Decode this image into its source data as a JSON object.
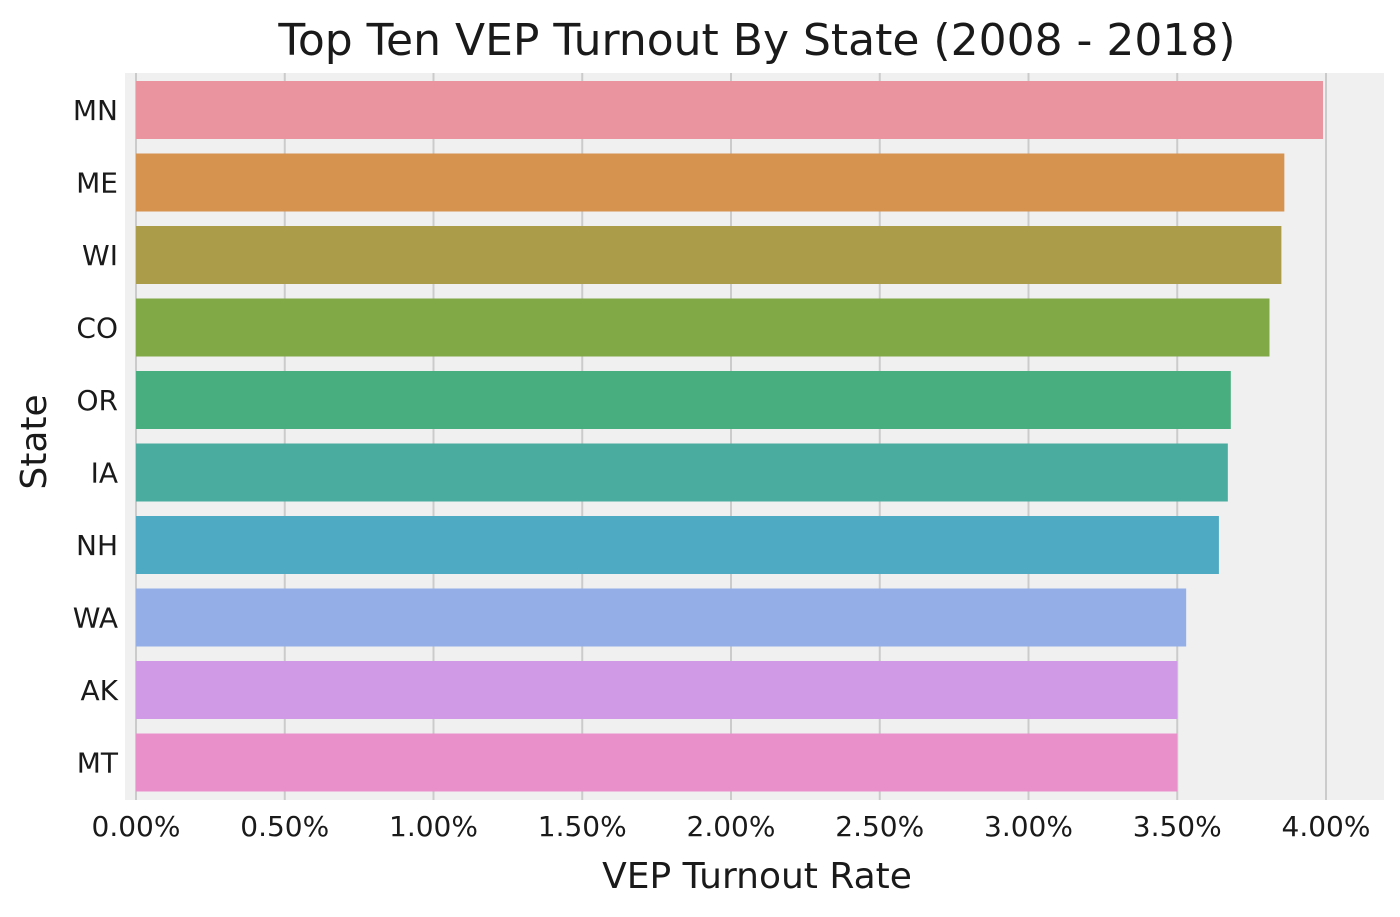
{
  "chart_data": {
    "type": "bar",
    "orientation": "horizontal",
    "title": "Top Ten VEP Turnout By State (2008 - 2018)",
    "xlabel": "VEP Turnout Rate",
    "ylabel": "State",
    "categories": [
      "MN",
      "ME",
      "WI",
      "CO",
      "OR",
      "IA",
      "NH",
      "WA",
      "AK",
      "MT"
    ],
    "values": [
      3.99,
      3.86,
      3.85,
      3.81,
      3.68,
      3.67,
      3.64,
      3.53,
      3.5,
      3.5
    ],
    "value_unit": "%",
    "xlim": [
      0,
      4.2
    ],
    "xticks": [
      0,
      0.5,
      1.0,
      1.5,
      2.0,
      2.5,
      3.0,
      3.5,
      4.0
    ],
    "xtick_labels": [
      "0.00%",
      "0.50%",
      "1.00%",
      "1.50%",
      "2.00%",
      "2.50%",
      "3.00%",
      "3.50%",
      "4.00%"
    ],
    "grid": "vertical",
    "colors": [
      "#e9949f",
      "#d6924f",
      "#aa9c49",
      "#81a946",
      "#49ae7f",
      "#4aab9f",
      "#4eaac3",
      "#94aee7",
      "#d19ae6",
      "#e990cb"
    ],
    "background": "#f0f0f0",
    "gridline_color": "#cbcbcb"
  }
}
